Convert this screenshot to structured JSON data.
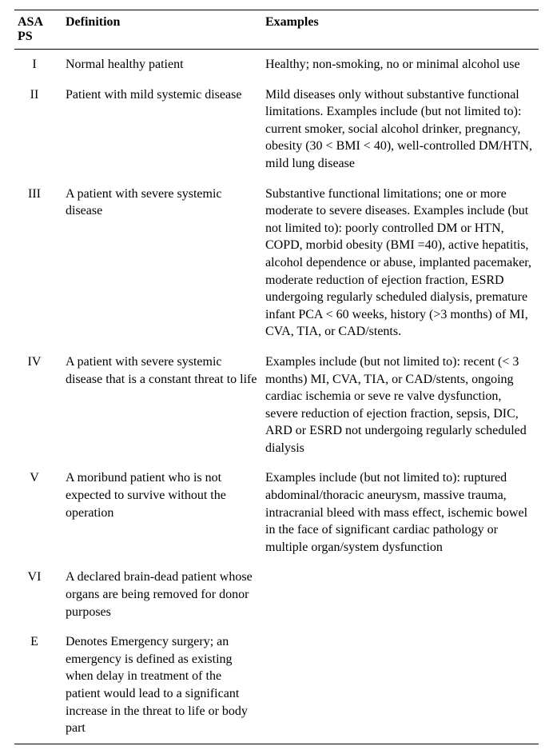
{
  "headers": {
    "col1": "ASA PS",
    "col2": "Definition",
    "col3": "Examples"
  },
  "rows": [
    {
      "ps": "I",
      "definition": "Normal healthy patient",
      "examples": "Healthy; non-smoking, no or minimal alcohol use"
    },
    {
      "ps": "II",
      "definition": "Patient with mild systemic disease",
      "examples": "Mild diseases only without substantive functional limitations. Examples include (but not limited to): current smoker, social alcohol drinker, pregnancy, obesity (30 < BMI < 40), well-controlled DM/HTN, mild lung disease"
    },
    {
      "ps": "III",
      "definition": "A patient with severe systemic disease",
      "examples": "Substantive functional limitations; one or more moderate to severe diseases. Examples include (but not limited to): poorly controlled DM or HTN, COPD, morbid obesity (BMI =40), active hepatitis, alcohol dependence or abuse, implanted pacemaker, moderate reduction of ejection fraction, ESRD undergoing regularly scheduled dialysis, premature infant PCA < 60 weeks, history (>3 months) of MI, CVA, TIA, or CAD/stents."
    },
    {
      "ps": "IV",
      "definition": "A patient with severe systemic disease that is a constant threat to life",
      "examples": "Examples include (but not limited to): recent (< 3 months) MI, CVA, TIA, or CAD/stents, ongoing cardiac ischemia or seve re valve dysfunction, severe reduction of ejection fraction, sepsis, DIC, ARD or ESRD not undergoing regularly scheduled dialysis"
    },
    {
      "ps": "V",
      "definition": "A moribund patient who is not expected to survive without the operation",
      "examples": "Examples include (but not limited to): ruptured abdominal/thoracic aneurysm, massive trauma, intracranial bleed with mass effect, ischemic bowel in the face of significant cardiac pathology or multiple organ/system dysfunction"
    },
    {
      "ps": "VI",
      "definition": "A declared brain-dead patient whose organs are being removed for donor purposes",
      "examples": ""
    },
    {
      "ps": "E",
      "definition": "Denotes Emergency surgery; an emergency is defined as existing when delay in treatment of the patient would lead to a significant increase in the threat to life or body part",
      "examples": ""
    }
  ]
}
